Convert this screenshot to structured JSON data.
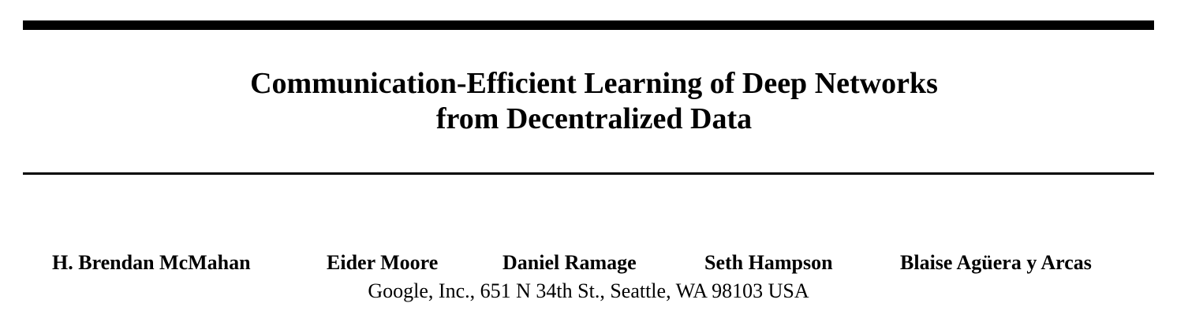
{
  "paper": {
    "title_line_1": "Communication-Efficient Learning of Deep Networks",
    "title_line_2": "from Decentralized Data",
    "authors": [
      "H. Brendan McMahan",
      "Eider Moore",
      "Daniel Ramage",
      "Seth Hampson",
      "Blaise Agüera y Arcas"
    ],
    "affiliation": "Google, Inc., 651 N 34th St., Seattle, WA 98103 USA"
  }
}
